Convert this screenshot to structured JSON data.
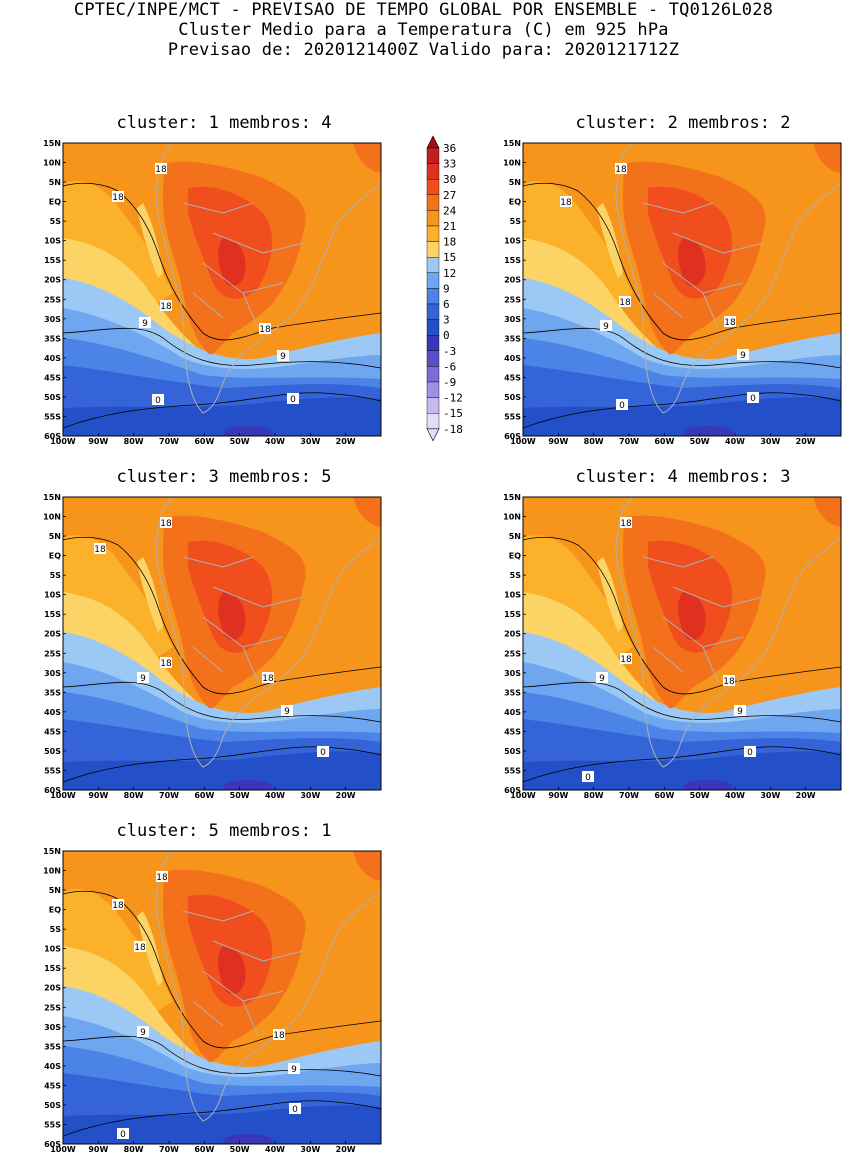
{
  "header": {
    "line1": "CPTEC/INPE/MCT - PREVISAO DE TEMPO GLOBAL POR ENSEMBLE - TQ0126L028",
    "line2": "Cluster Medio para a Temperatura (C) em 925 hPa",
    "line3": "Previsao de: 2020121400Z   Valido para: 2020121712Z"
  },
  "axes": {
    "lat_labels": [
      "15N",
      "10N",
      "5N",
      "EQ",
      "5S",
      "10S",
      "15S",
      "20S",
      "25S",
      "30S",
      "35S",
      "40S",
      "45S",
      "50S",
      "55S",
      "60S"
    ],
    "lon_labels": [
      "100W",
      "90W",
      "80W",
      "70W",
      "60W",
      "50W",
      "40W",
      "30W",
      "20W"
    ]
  },
  "colorbar": {
    "labels": [
      "36",
      "33",
      "30",
      "27",
      "24",
      "21",
      "18",
      "15",
      "12",
      "9",
      "6",
      "3",
      "0",
      "-3",
      "-6",
      "-9",
      "-12",
      "-15",
      "-18"
    ],
    "colors": [
      "#a40b18",
      "#c11f20",
      "#e0301f",
      "#f04f1d",
      "#f4711c",
      "#f7941b",
      "#fbb12a",
      "#fbd465",
      "#9cc8f5",
      "#6fa6f0",
      "#4b84e6",
      "#3464d8",
      "#2350c8",
      "#3a36b8",
      "#5a4ec8",
      "#7b6cd8",
      "#9f8fe6",
      "#c7b8f2",
      "#e5dcf9"
    ]
  },
  "panels": [
    {
      "title": "cluster: 1   membros: 4",
      "labels": [
        "18",
        "18",
        "18",
        "18",
        "9",
        "9",
        "0",
        "0"
      ]
    },
    {
      "title": "cluster: 2   membros: 2",
      "labels": [
        "18",
        "18",
        "18",
        "18",
        "9",
        "9",
        "0",
        "0"
      ]
    },
    {
      "title": "cluster: 3   membros: 5",
      "labels": [
        "18",
        "18",
        "18",
        "18",
        "9",
        "9",
        "0"
      ]
    },
    {
      "title": "cluster: 4   membros: 3",
      "labels": [
        "18",
        "18",
        "18",
        "9",
        "9",
        "0",
        "0"
      ]
    },
    {
      "title": "cluster: 5   membros: 1",
      "labels": [
        "18",
        "18",
        "18",
        "18",
        "9",
        "9",
        "0",
        "0"
      ]
    }
  ]
}
